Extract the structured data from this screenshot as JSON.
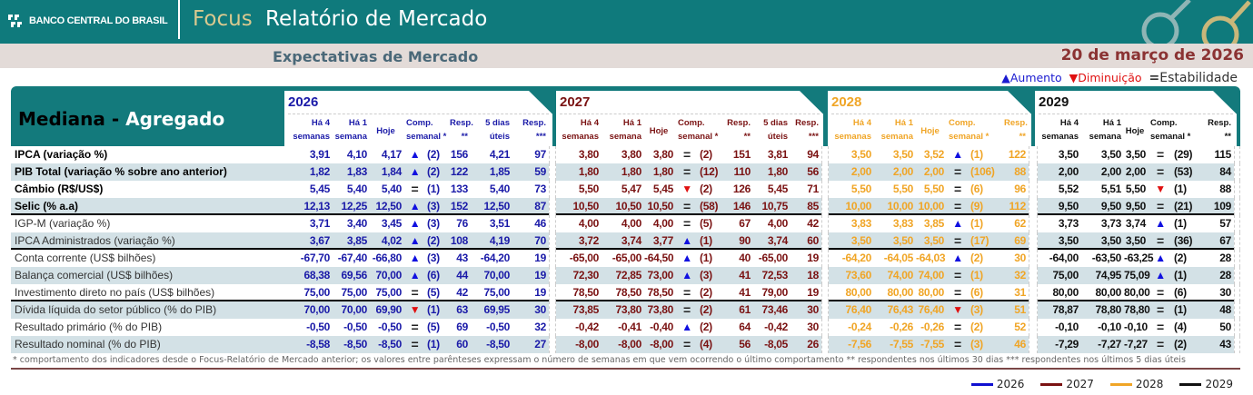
{
  "header": {
    "logo": "BANCO CENTRAL DO BRASIL",
    "focus": "Focus",
    "title": "Relatório de Mercado"
  },
  "subheader": {
    "title": "Expectativas de Mercado",
    "date": "20 de março de 2026"
  },
  "legend": {
    "up": "Aumento",
    "down": "Diminuição",
    "eq": "Estabilidade",
    "up_icon": "▲",
    "down_icon": "▼",
    "eq_icon": "="
  },
  "table": {
    "title_a": "Mediana -",
    "title_b": "Agregado",
    "years": [
      {
        "year": "2026",
        "color": "#1a1aa8"
      },
      {
        "year": "2027",
        "color": "#7a1212"
      },
      {
        "year": "2028",
        "color": "#f0a526"
      },
      {
        "year": "2029",
        "color": "#111111"
      }
    ],
    "col_headers": {
      "h4": "Há 4\nsemanas",
      "h1": "Há 1\nsemana",
      "hoje": "Hoje",
      "comp": "Comp.\nsemanal *",
      "resp": "Resp.\n**",
      "d5": "5 dias\núteis",
      "resp3": "Resp.\n***"
    },
    "rows": [
      {
        "label": "IPCA (variação %)",
        "bold": true,
        "v": [
          [
            "3,91",
            "4,10",
            "4,17",
            "up",
            "(2)",
            "156",
            "4,21",
            "97"
          ],
          [
            "3,80",
            "3,80",
            "3,80",
            "eq",
            "(2)",
            "151",
            "3,81",
            "94"
          ],
          [
            "3,50",
            "3,50",
            "3,52",
            "up",
            "(1)",
            "122"
          ],
          [
            "3,50",
            "3,50",
            "3,50",
            "eq",
            "(29)",
            "115"
          ]
        ]
      },
      {
        "label": "PIB Total (variação % sobre ano anterior)",
        "bold": true,
        "v": [
          [
            "1,82",
            "1,83",
            "1,84",
            "up",
            "(2)",
            "122",
            "1,85",
            "59"
          ],
          [
            "1,80",
            "1,80",
            "1,80",
            "eq",
            "(12)",
            "110",
            "1,80",
            "56"
          ],
          [
            "2,00",
            "2,00",
            "2,00",
            "eq",
            "(106)",
            "88"
          ],
          [
            "2,00",
            "2,00",
            "2,00",
            "eq",
            "(53)",
            "84"
          ]
        ]
      },
      {
        "label": "Câmbio (R$/US$)",
        "bold": true,
        "v": [
          [
            "5,45",
            "5,40",
            "5,40",
            "eq",
            "(1)",
            "133",
            "5,40",
            "73"
          ],
          [
            "5,50",
            "5,47",
            "5,45",
            "down",
            "(2)",
            "126",
            "5,45",
            "71"
          ],
          [
            "5,50",
            "5,50",
            "5,50",
            "eq",
            "(6)",
            "96"
          ],
          [
            "5,52",
            "5,51",
            "5,50",
            "down",
            "(1)",
            "88"
          ]
        ]
      },
      {
        "label": "Selic (% a.a)",
        "bold": true,
        "sep": true,
        "v": [
          [
            "12,13",
            "12,25",
            "12,50",
            "up",
            "(3)",
            "152",
            "12,50",
            "87"
          ],
          [
            "10,50",
            "10,50",
            "10,50",
            "eq",
            "(58)",
            "146",
            "10,75",
            "85"
          ],
          [
            "10,00",
            "10,00",
            "10,00",
            "eq",
            "(9)",
            "112"
          ],
          [
            "9,50",
            "9,50",
            "9,50",
            "eq",
            "(21)",
            "109"
          ]
        ]
      },
      {
        "label": "IGP-M (variação %)",
        "v": [
          [
            "3,71",
            "3,40",
            "3,45",
            "up",
            "(3)",
            "76",
            "3,51",
            "46"
          ],
          [
            "4,00",
            "4,00",
            "4,00",
            "eq",
            "(5)",
            "67",
            "4,00",
            "42"
          ],
          [
            "3,83",
            "3,83",
            "3,85",
            "up",
            "(1)",
            "62"
          ],
          [
            "3,73",
            "3,73",
            "3,74",
            "up",
            "(1)",
            "57"
          ]
        ]
      },
      {
        "label": "IPCA Administrados (variação %)",
        "sep": true,
        "v": [
          [
            "3,67",
            "3,85",
            "4,02",
            "up",
            "(2)",
            "108",
            "4,19",
            "70"
          ],
          [
            "3,72",
            "3,74",
            "3,77",
            "up",
            "(1)",
            "90",
            "3,74",
            "60"
          ],
          [
            "3,50",
            "3,50",
            "3,50",
            "eq",
            "(17)",
            "69"
          ],
          [
            "3,50",
            "3,50",
            "3,50",
            "eq",
            "(36)",
            "67"
          ]
        ]
      },
      {
        "label": "Conta corrente (US$ bilhões)",
        "v": [
          [
            "-67,70",
            "-67,40",
            "-66,80",
            "up",
            "(3)",
            "43",
            "-64,20",
            "19"
          ],
          [
            "-65,00",
            "-65,00",
            "-64,50",
            "up",
            "(1)",
            "40",
            "-65,00",
            "19"
          ],
          [
            "-64,20",
            "-64,05",
            "-64,03",
            "up",
            "(2)",
            "30"
          ],
          [
            "-64,00",
            "-63,50",
            "-63,25",
            "up",
            "(2)",
            "28"
          ]
        ]
      },
      {
        "label": "Balança comercial (US$ bilhões)",
        "v": [
          [
            "68,38",
            "69,56",
            "70,00",
            "up",
            "(6)",
            "44",
            "70,00",
            "19"
          ],
          [
            "72,30",
            "72,85",
            "73,00",
            "up",
            "(3)",
            "41",
            "72,53",
            "18"
          ],
          [
            "73,60",
            "74,00",
            "74,00",
            "eq",
            "(1)",
            "32"
          ],
          [
            "75,00",
            "74,95",
            "75,09",
            "up",
            "(1)",
            "28"
          ]
        ]
      },
      {
        "label": "Investimento direto no país (US$ bilhões)",
        "sep": true,
        "v": [
          [
            "75,00",
            "75,00",
            "75,00",
            "eq",
            "(5)",
            "42",
            "75,00",
            "19"
          ],
          [
            "78,50",
            "78,50",
            "78,50",
            "eq",
            "(2)",
            "41",
            "79,00",
            "19"
          ],
          [
            "80,00",
            "80,00",
            "80,00",
            "eq",
            "(6)",
            "31"
          ],
          [
            "80,00",
            "80,00",
            "80,00",
            "eq",
            "(6)",
            "30"
          ]
        ]
      },
      {
        "label": "Dívida líquida do setor público (% do PIB)",
        "v": [
          [
            "70,00",
            "70,00",
            "69,90",
            "down",
            "(1)",
            "63",
            "69,95",
            "30"
          ],
          [
            "73,85",
            "73,80",
            "73,80",
            "eq",
            "(2)",
            "61",
            "73,46",
            "30"
          ],
          [
            "76,40",
            "76,43",
            "76,40",
            "down",
            "(3)",
            "51"
          ],
          [
            "78,87",
            "78,80",
            "78,80",
            "eq",
            "(1)",
            "48"
          ]
        ]
      },
      {
        "label": "Resultado primário (% do PIB)",
        "v": [
          [
            "-0,50",
            "-0,50",
            "-0,50",
            "eq",
            "(5)",
            "69",
            "-0,50",
            "32"
          ],
          [
            "-0,42",
            "-0,41",
            "-0,40",
            "up",
            "(2)",
            "64",
            "-0,42",
            "30"
          ],
          [
            "-0,24",
            "-0,26",
            "-0,26",
            "eq",
            "(2)",
            "52"
          ],
          [
            "-0,10",
            "-0,10",
            "-0,10",
            "eq",
            "(4)",
            "50"
          ]
        ]
      },
      {
        "label": "Resultado nominal (% do PIB)",
        "v": [
          [
            "-8,58",
            "-8,50",
            "-8,50",
            "eq",
            "(1)",
            "60",
            "-8,50",
            "27"
          ],
          [
            "-8,00",
            "-8,00",
            "-8,00",
            "eq",
            "(4)",
            "56",
            "-8,05",
            "26"
          ],
          [
            "-7,56",
            "-7,55",
            "-7,55",
            "eq",
            "(3)",
            "46"
          ],
          [
            "-7,29",
            "-7,27",
            "-7,27",
            "eq",
            "(2)",
            "43"
          ]
        ]
      }
    ]
  },
  "footnote": "* comportamento dos indicadores desde o Focus-Relatório de Mercado anterior; os valores entre parênteses expressam o número de semanas em que vem ocorrendo o último comportamento ** respondentes nos últimos 30 dias *** respondentes nos últimos 5 dias úteis"
}
